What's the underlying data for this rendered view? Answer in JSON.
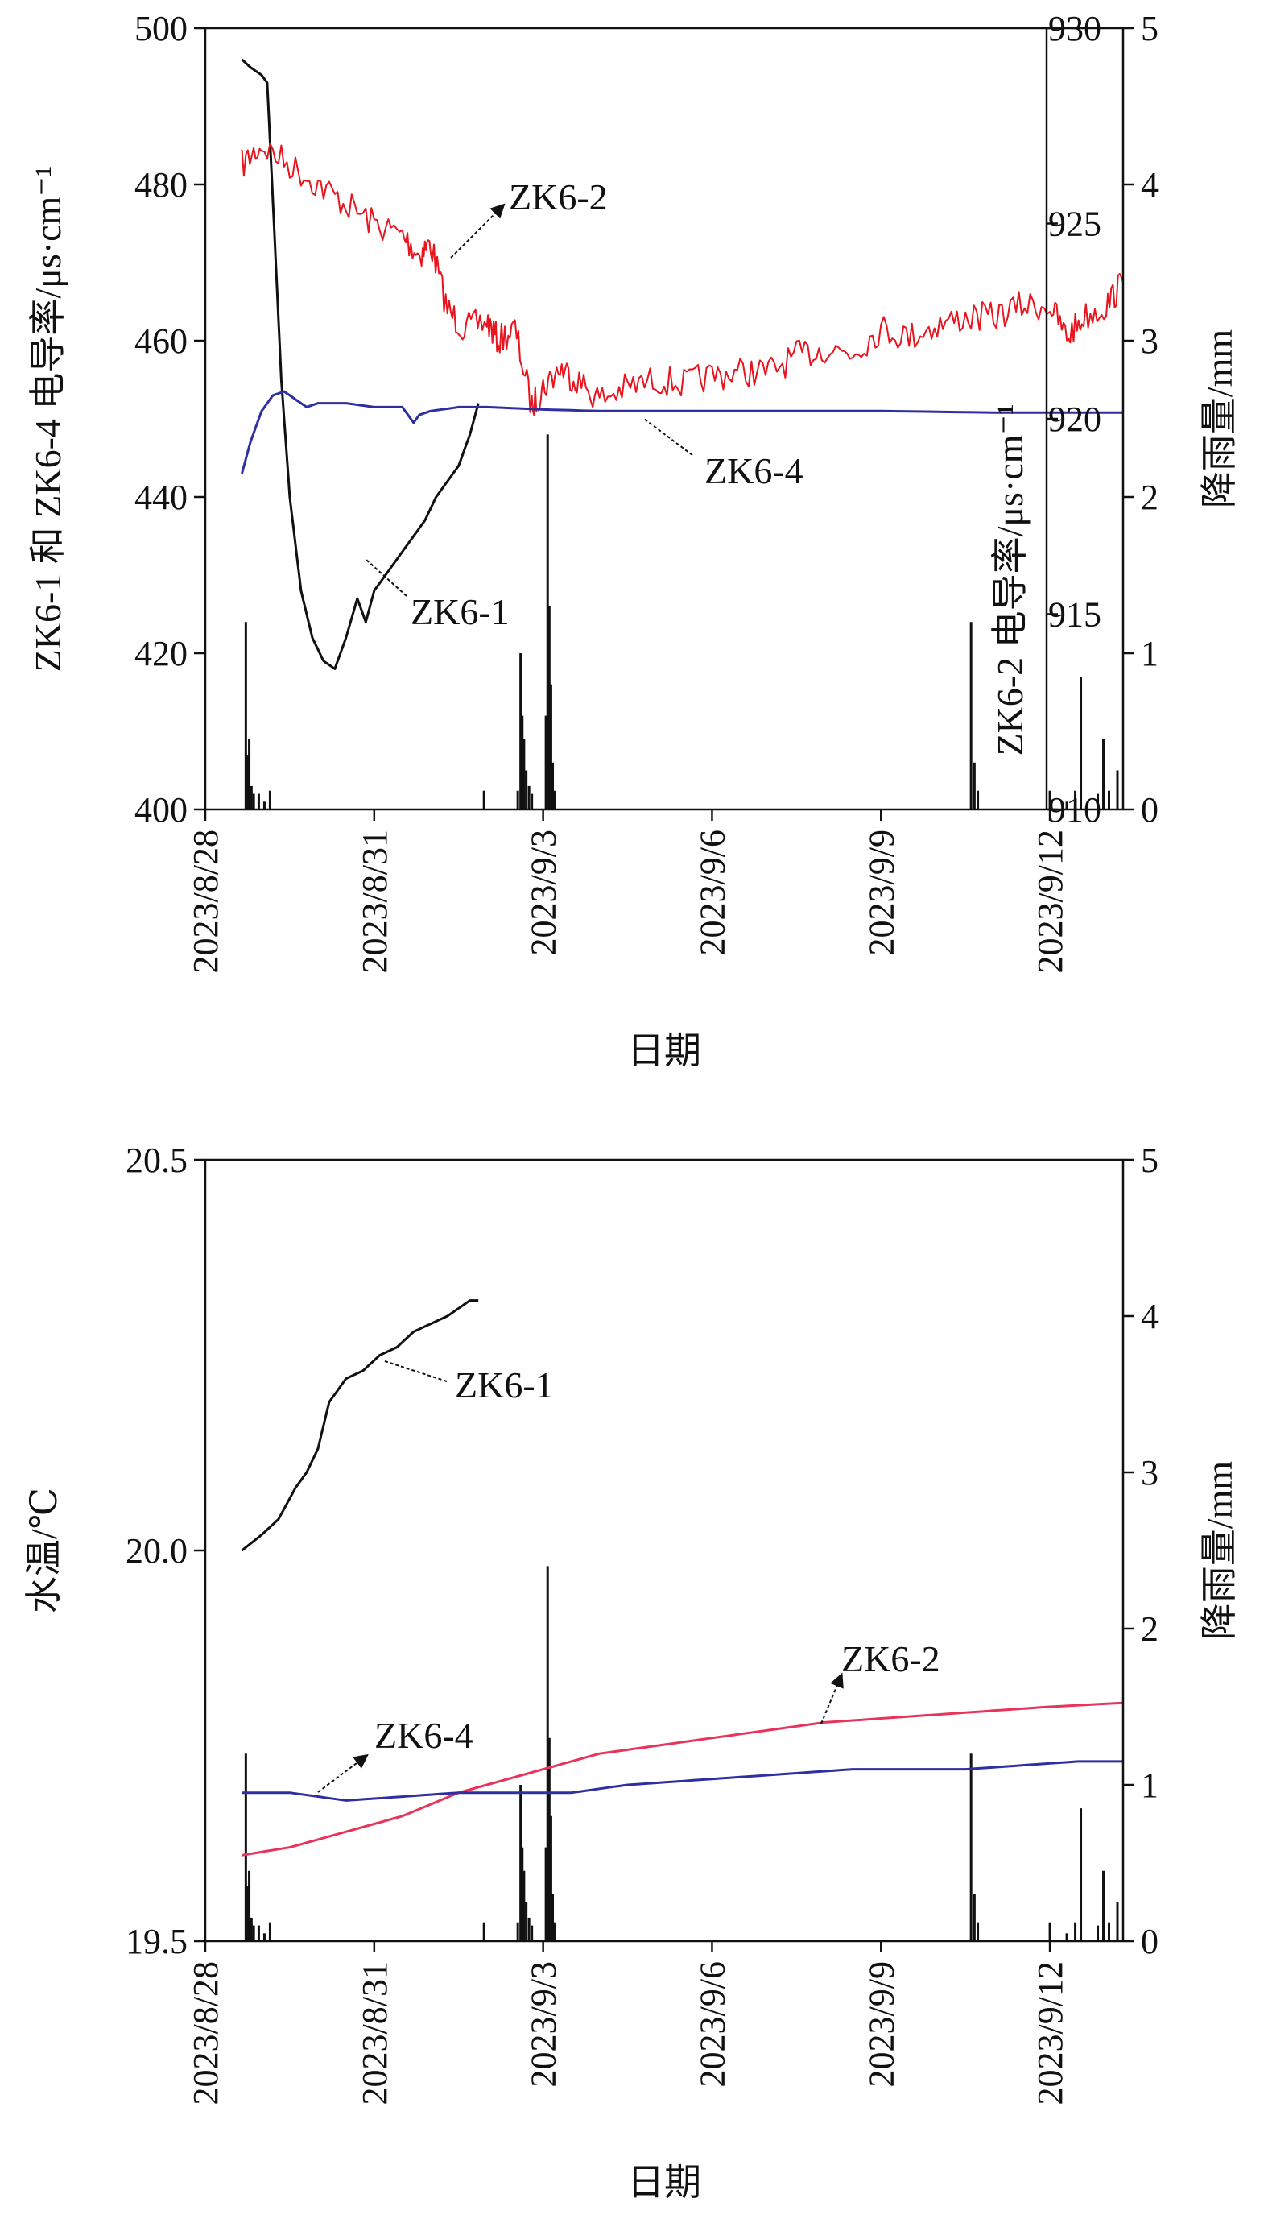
{
  "chart_data": [
    {
      "type": "line",
      "id": "conductivity",
      "xlabel": "日期",
      "ylabel_left": "ZK6-1 和 ZK6-4 电导率/μs·cm⁻¹",
      "ylabel_right_inner": "ZK6-2 电导率/μs·cm⁻¹",
      "ylabel_right_outer": "降雨量/mm",
      "x_range": [
        0,
        16.3
      ],
      "x_ticks": [
        "2023/8/28",
        "2023/8/31",
        "2023/9/3",
        "2023/9/6",
        "2023/9/9",
        "2023/9/12"
      ],
      "ylim_left": [
        400,
        500
      ],
      "yticks_left": [
        "400",
        "420",
        "440",
        "460",
        "480",
        "500"
      ],
      "ylim_right_inner": [
        910,
        930
      ],
      "yticks_right_inner": [
        "910",
        "915",
        "920",
        "925",
        "930"
      ],
      "ylim_right_outer": [
        0,
        5
      ],
      "yticks_right_outer": [
        "0",
        "1",
        "2",
        "3",
        "4",
        "5"
      ],
      "grid": false,
      "series": [
        {
          "name": "ZK6-1",
          "axis": "left",
          "color": "#111111",
          "x": [
            0.65,
            0.8,
            1.0,
            1.1,
            1.2,
            1.35,
            1.5,
            1.7,
            1.9,
            2.1,
            2.3,
            2.5,
            2.7,
            2.85,
            3.0,
            3.3,
            3.6,
            3.9,
            4.1,
            4.3,
            4.5,
            4.7,
            4.85
          ],
          "y": [
            496,
            495,
            494,
            493,
            478,
            455,
            440,
            428,
            422,
            419,
            418,
            422,
            427,
            424,
            428,
            431,
            434,
            437,
            440,
            442,
            444,
            448,
            452
          ]
        },
        {
          "name": "ZK6-2",
          "axis": "right_inner",
          "color": "#e8141e",
          "x": [
            0.65,
            1.0,
            1.5,
            2.0,
            2.5,
            3.0,
            3.5,
            3.8,
            4.0,
            4.3,
            4.6,
            5.0,
            5.2,
            5.5,
            5.8,
            6.0,
            6.3,
            6.6,
            7.0,
            7.5,
            8.0,
            8.5,
            9.0,
            9.5,
            10.0,
            10.5,
            11.0,
            11.5,
            12.0,
            12.5,
            13.0,
            13.5,
            14.0,
            14.5,
            15.0,
            15.3,
            15.6,
            16.0,
            16.3
          ],
          "y": [
            926.5,
            927,
            926.5,
            926,
            925.5,
            925,
            924.7,
            924.2,
            924.5,
            922.8,
            922.3,
            922.5,
            922.0,
            922.3,
            920.3,
            920.8,
            921.3,
            921.0,
            920.5,
            920.8,
            921.0,
            920.9,
            921.1,
            921.2,
            921.2,
            921.6,
            921.8,
            921.7,
            922.3,
            922.1,
            922.4,
            922.6,
            922.6,
            922.9,
            922.9,
            922.1,
            922.6,
            922.9,
            923.5
          ]
        },
        {
          "name": "ZK6-4",
          "axis": "left",
          "color": "#2e2fa0",
          "x": [
            0.65,
            0.8,
            1.0,
            1.2,
            1.4,
            1.6,
            1.8,
            2.0,
            2.5,
            3.0,
            3.5,
            3.7,
            3.8,
            4.0,
            4.5,
            5.0,
            6.0,
            7.0,
            8.0,
            10.0,
            12.0,
            14.0,
            16.3
          ],
          "y": [
            443,
            447,
            451,
            453,
            453.5,
            452.5,
            451.5,
            452,
            452,
            451.5,
            451.5,
            449.5,
            450.5,
            451,
            451.5,
            451.5,
            451.2,
            451,
            451,
            451,
            451,
            450.8,
            450.8
          ]
        }
      ],
      "rainfall": {
        "name": "降雨量",
        "x": [
          0.72,
          0.75,
          0.78,
          0.82,
          0.86,
          0.95,
          1.05,
          1.15,
          4.95,
          5.55,
          5.6,
          5.63,
          5.66,
          5.7,
          5.75,
          5.8,
          6.05,
          6.08,
          6.11,
          6.14,
          6.17,
          6.2,
          13.6,
          13.66,
          13.72,
          15.0,
          15.3,
          15.45,
          15.55,
          15.85,
          15.95,
          16.05,
          16.2
        ],
        "values": [
          1.2,
          0.35,
          0.45,
          0.15,
          0.1,
          0.1,
          0.05,
          0.12,
          0.12,
          0.12,
          1.0,
          0.6,
          0.45,
          0.25,
          0.15,
          0.1,
          0.6,
          2.4,
          1.3,
          0.8,
          0.3,
          0.12,
          1.2,
          0.3,
          0.12,
          0.12,
          0.05,
          0.12,
          0.85,
          0.1,
          0.45,
          0.12,
          0.25
        ]
      },
      "annotations": [
        {
          "label": "ZK6-2",
          "series": "ZK6-2"
        },
        {
          "label": "ZK6-4",
          "series": "ZK6-4"
        },
        {
          "label": "ZK6-1",
          "series": "ZK6-1"
        }
      ]
    },
    {
      "type": "line",
      "id": "temperature",
      "xlabel": "日期",
      "ylabel_left": "水温/℃",
      "ylabel_right": "降雨量/mm",
      "x_range": [
        0,
        16.3
      ],
      "x_ticks": [
        "2023/8/28",
        "2023/8/31",
        "2023/9/3",
        "2023/9/6",
        "2023/9/9",
        "2023/9/12"
      ],
      "ylim_left": [
        19.5,
        20.5
      ],
      "yticks_left": [
        "19.5",
        "20.0",
        "20.5"
      ],
      "ylim_right": [
        0,
        5
      ],
      "yticks_right": [
        "0",
        "1",
        "2",
        "3",
        "4",
        "5"
      ],
      "grid": false,
      "series": [
        {
          "name": "ZK6-1",
          "axis": "left",
          "color": "#111111",
          "x": [
            0.65,
            1.0,
            1.3,
            1.6,
            1.8,
            2.0,
            2.2,
            2.5,
            2.8,
            3.1,
            3.4,
            3.7,
            4.0,
            4.3,
            4.5,
            4.7,
            4.85
          ],
          "y": [
            20.0,
            20.02,
            20.04,
            20.08,
            20.1,
            20.13,
            20.19,
            20.22,
            20.23,
            20.25,
            20.26,
            20.28,
            20.29,
            20.3,
            20.31,
            20.32,
            20.32
          ]
        },
        {
          "name": "ZK6-2",
          "axis": "left",
          "color": "#e8335a",
          "x": [
            0.65,
            1.5,
            2.5,
            3.5,
            4.5,
            5.5,
            6.0,
            7.0,
            8.0,
            9.0,
            10.0,
            11.0,
            12.0,
            13.0,
            14.0,
            15.0,
            16.3
          ],
          "y": [
            19.61,
            19.62,
            19.64,
            19.66,
            19.69,
            19.71,
            19.72,
            19.74,
            19.75,
            19.76,
            19.77,
            19.78,
            19.785,
            19.79,
            19.795,
            19.8,
            19.805
          ]
        },
        {
          "name": "ZK6-4",
          "axis": "left",
          "color": "#2e2fa0",
          "x": [
            0.65,
            1.5,
            2.5,
            3.5,
            4.5,
            5.5,
            6.5,
            7.5,
            8.5,
            9.5,
            10.5,
            11.5,
            12.5,
            13.5,
            14.5,
            15.5,
            16.3
          ],
          "y": [
            19.69,
            19.69,
            19.68,
            19.685,
            19.69,
            19.69,
            19.69,
            19.7,
            19.705,
            19.71,
            19.715,
            19.72,
            19.72,
            19.72,
            19.725,
            19.73,
            19.73
          ]
        }
      ],
      "rainfall": {
        "name": "降雨量",
        "x": [
          0.72,
          0.75,
          0.78,
          0.82,
          0.86,
          0.95,
          1.05,
          1.15,
          4.95,
          5.55,
          5.6,
          5.63,
          5.66,
          5.7,
          5.75,
          5.8,
          6.05,
          6.08,
          6.11,
          6.14,
          6.17,
          6.2,
          13.6,
          13.66,
          13.72,
          15.0,
          15.3,
          15.45,
          15.55,
          15.85,
          15.95,
          16.05,
          16.2
        ],
        "values": [
          1.2,
          0.35,
          0.45,
          0.15,
          0.1,
          0.1,
          0.05,
          0.12,
          0.12,
          0.12,
          1.0,
          0.6,
          0.45,
          0.25,
          0.15,
          0.1,
          0.6,
          2.4,
          1.3,
          0.8,
          0.3,
          0.12,
          1.2,
          0.3,
          0.12,
          0.12,
          0.05,
          0.12,
          0.85,
          0.1,
          0.45,
          0.12,
          0.25
        ]
      },
      "annotations": [
        {
          "label": "ZK6-1",
          "series": "ZK6-1"
        },
        {
          "label": "ZK6-2",
          "series": "ZK6-2"
        },
        {
          "label": "ZK6-4",
          "series": "ZK6-4"
        }
      ]
    }
  ]
}
